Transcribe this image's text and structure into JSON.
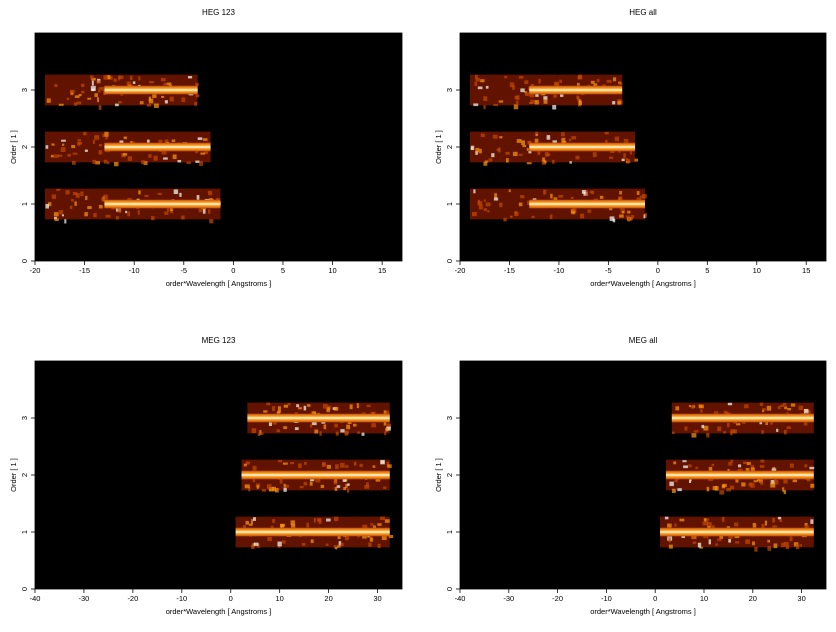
{
  "chart_data": [
    {
      "type": "heatmap",
      "title": "HEG 123",
      "xlabel": "order*Wavelength [ Angstroms ]",
      "ylabel": "Order [ 1 ]",
      "xlim": [
        -20,
        17
      ],
      "ylim": [
        0,
        4
      ],
      "xticks": [
        -20,
        -15,
        -10,
        -5,
        0,
        5,
        10,
        15
      ],
      "yticks": [
        0,
        1,
        2,
        3
      ],
      "bands": [
        {
          "order": 1,
          "x_start": -19,
          "x_end": -1.3,
          "hot_start": -13.0
        },
        {
          "order": 2,
          "x_start": -19,
          "x_end": -2.3,
          "hot_start": -13.0
        },
        {
          "order": 3,
          "x_start": -19,
          "x_end": -3.6,
          "hot_start": -13.0
        }
      ]
    },
    {
      "type": "heatmap",
      "title": "HEG all",
      "xlabel": "order*Wavelength [ Angstroms ]",
      "ylabel": "Order [ 1 ]",
      "xlim": [
        -20,
        17
      ],
      "ylim": [
        0,
        4
      ],
      "xticks": [
        -20,
        -15,
        -10,
        -5,
        0,
        5,
        10,
        15
      ],
      "yticks": [
        0,
        1,
        2,
        3
      ],
      "bands": [
        {
          "order": 1,
          "x_start": -19,
          "x_end": -1.3,
          "hot_start": -13.0
        },
        {
          "order": 2,
          "x_start": -19,
          "x_end": -2.3,
          "hot_start": -13.0
        },
        {
          "order": 3,
          "x_start": -19,
          "x_end": -3.6,
          "hot_start": -13.0
        }
      ]
    },
    {
      "type": "heatmap",
      "title": "MEG 123",
      "xlabel": "order*Wavelength [ Angstroms ]",
      "ylabel": "Order [ 1 ]",
      "xlim": [
        -40,
        35
      ],
      "ylim": [
        0,
        4
      ],
      "xticks": [
        -40,
        -30,
        -20,
        -10,
        0,
        10,
        20,
        30
      ],
      "yticks": [
        0,
        1,
        2,
        3
      ],
      "bands": [
        {
          "order": 1,
          "x_start": 1.0,
          "x_end": 32.5,
          "hot_start": 1.0
        },
        {
          "order": 2,
          "x_start": 2.2,
          "x_end": 32.5,
          "hot_start": 2.2
        },
        {
          "order": 3,
          "x_start": 3.4,
          "x_end": 32.5,
          "hot_start": 3.4
        }
      ]
    },
    {
      "type": "heatmap",
      "title": "MEG all",
      "xlabel": "order*Wavelength [ Angstroms ]",
      "ylabel": "Order [ 1 ]",
      "xlim": [
        -40,
        35
      ],
      "ylim": [
        0,
        4
      ],
      "xticks": [
        -40,
        -30,
        -20,
        -10,
        0,
        10,
        20,
        30
      ],
      "yticks": [
        0,
        1,
        2,
        3
      ],
      "bands": [
        {
          "order": 1,
          "x_start": 1.0,
          "x_end": 32.5,
          "hot_start": 1.0
        },
        {
          "order": 2,
          "x_start": 2.2,
          "x_end": 32.5,
          "hot_start": 2.2
        },
        {
          "order": 3,
          "x_start": 3.4,
          "x_end": 32.5,
          "hot_start": 3.4
        }
      ]
    }
  ],
  "colors": {
    "background": "#000000",
    "low": "#6b1500",
    "mid": "#c44a00",
    "high": "#ff9a10",
    "peak": "#ffffff"
  }
}
